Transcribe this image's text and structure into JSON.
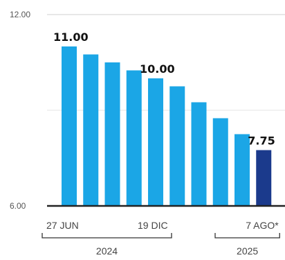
{
  "chart_data": {
    "type": "bar",
    "ylim": [
      6.0,
      12.0
    ],
    "y_ticks": [
      "6.00",
      "12.00"
    ],
    "gridlines": [
      9.0
    ],
    "values": [
      11.0,
      10.75,
      10.5,
      10.25,
      10.0,
      9.75,
      9.25,
      8.75,
      8.25,
      7.75
    ],
    "bar_colors": [
      "#1BA6E6",
      "#1BA6E6",
      "#1BA6E6",
      "#1BA6E6",
      "#1BA6E6",
      "#1BA6E6",
      "#1BA6E6",
      "#1BA6E6",
      "#1BA6E6",
      "#1B3A8C"
    ],
    "data_labels": [
      {
        "index": 0,
        "text": "11.00"
      },
      {
        "index": 4,
        "text": "10.00"
      },
      {
        "index": 9,
        "text": "7.75"
      }
    ],
    "date_labels": [
      {
        "index": 0,
        "text": "27 JUN"
      },
      {
        "index": 4,
        "text": "19 DIC"
      },
      {
        "index": 9,
        "text": "7 AGO*"
      }
    ],
    "year_labels": [
      {
        "text": "2024",
        "from": 0,
        "to": 4
      },
      {
        "text": "2025",
        "from": 8,
        "to": 9
      }
    ]
  }
}
